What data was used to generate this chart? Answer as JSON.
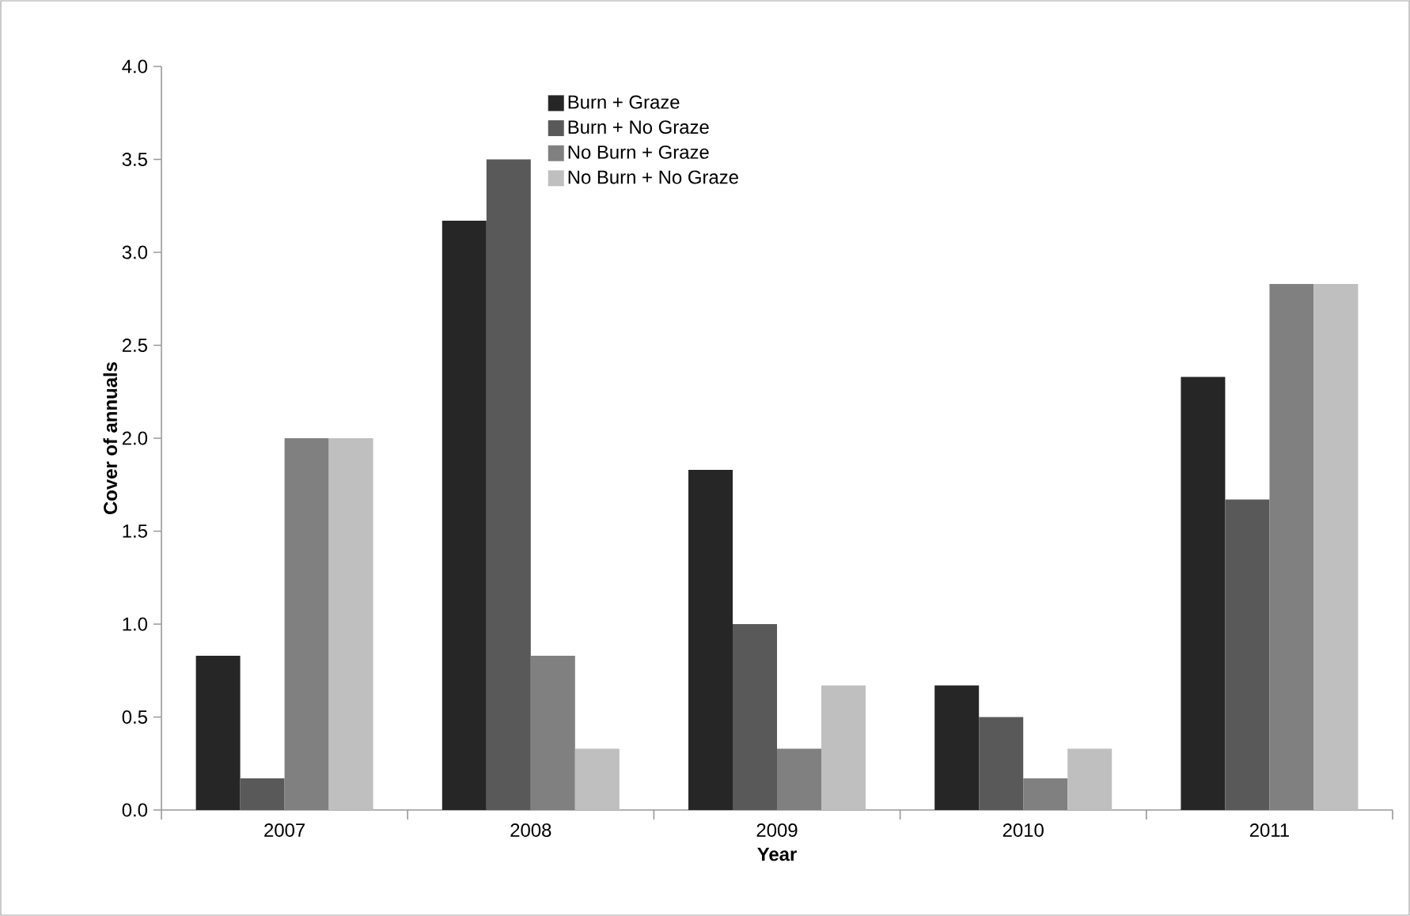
{
  "chart_data": {
    "type": "bar",
    "xlabel": "Year",
    "ylabel": "Cover of annuals",
    "categories": [
      "2007",
      "2008",
      "2009",
      "2010",
      "2011"
    ],
    "series": [
      {
        "name": "Burn + Graze",
        "color": "#262626",
        "values": [
          0.83,
          3.17,
          1.83,
          0.67,
          2.33
        ]
      },
      {
        "name": "Burn + No Graze",
        "color": "#595959",
        "values": [
          0.17,
          3.5,
          1.0,
          0.5,
          1.67
        ]
      },
      {
        "name": "No Burn + Graze",
        "color": "#808080",
        "values": [
          2.0,
          0.83,
          0.33,
          0.17,
          2.83
        ]
      },
      {
        "name": "No Burn + No Graze",
        "color": "#bfbfbf",
        "values": [
          2.0,
          0.33,
          0.67,
          0.33,
          2.83
        ]
      }
    ],
    "ylim": [
      0,
      4
    ],
    "yticks": [
      {
        "value": 0,
        "label": "0.0"
      },
      {
        "value": 0.5,
        "label": "0.5"
      },
      {
        "value": 1,
        "label": "1.0"
      },
      {
        "value": 1.5,
        "label": "1.5"
      },
      {
        "value": 2,
        "label": "2.0"
      },
      {
        "value": 2.5,
        "label": "2.5"
      },
      {
        "value": 3,
        "label": "3.0"
      },
      {
        "value": 3.5,
        "label": "3.5"
      },
      {
        "value": 4,
        "label": "4.0"
      }
    ],
    "grid": false,
    "legend": "top"
  }
}
